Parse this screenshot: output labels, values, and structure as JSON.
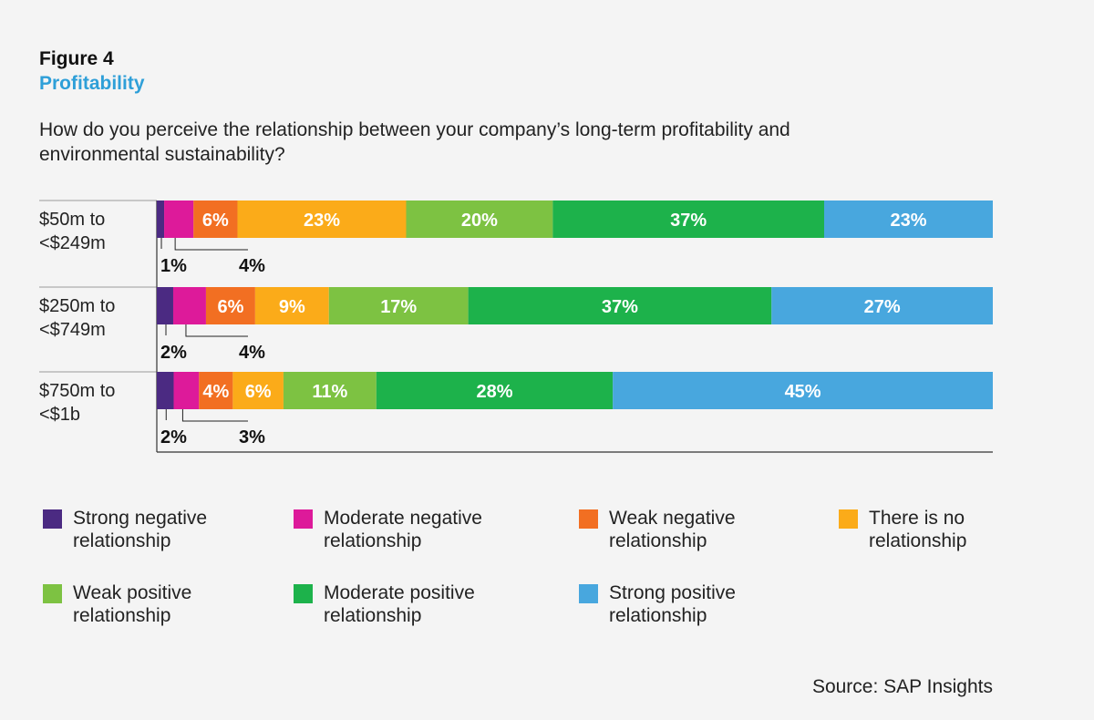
{
  "header": {
    "figure_label": "Figure 4",
    "figure_title": "Profitability",
    "question": "How do you perceive the relationship between your company’s long-term profitability and environmental sustainability?"
  },
  "source": "Source: SAP Insights",
  "chart_data": {
    "type": "bar",
    "orientation": "horizontal",
    "stacked": true,
    "categories": [
      "$50m to\n<$249m",
      "$250m to\n<$749m",
      "$750m to\n<$1b"
    ],
    "series": [
      {
        "name": "Strong negative relationship",
        "values": [
          1,
          2,
          2
        ],
        "color": "#4b2a82"
      },
      {
        "name": "Moderate negative relationship",
        "values": [
          4,
          4,
          3
        ],
        "color": "#dd1a9a"
      },
      {
        "name": "Weak negative relationship",
        "values": [
          6,
          6,
          4
        ],
        "color": "#f26f22"
      },
      {
        "name": "There is no relationship",
        "values": [
          23,
          9,
          6
        ],
        "color": "#fbab19"
      },
      {
        "name": "Weak positive relationship",
        "values": [
          20,
          17,
          11
        ],
        "color": "#7dc242"
      },
      {
        "name": "Moderate positive relationship",
        "values": [
          37,
          37,
          28
        ],
        "color": "#1db24b"
      },
      {
        "name": "Strong positive relationship",
        "values": [
          23,
          27,
          45
        ],
        "color": "#48a7de"
      }
    ],
    "units": "%",
    "legend_position": "bottom"
  }
}
